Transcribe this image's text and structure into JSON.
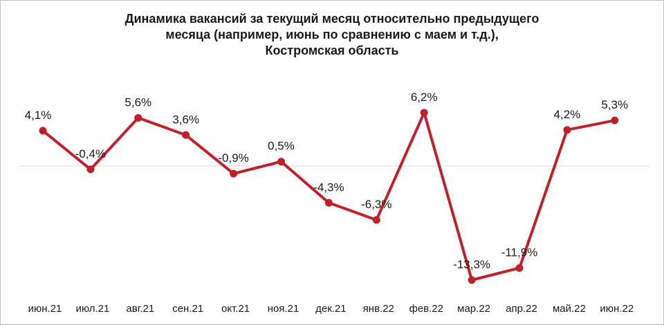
{
  "chart_data": {
    "type": "line",
    "title_lines": [
      "Динамика вакансий за текущий месяц относительно предыдущего",
      "месяца (например, июнь по сравнению с маем и т.д.),",
      "Костромская область"
    ],
    "xlabel": "",
    "ylabel": "",
    "categories": [
      "июн.21",
      "июл.21",
      "авг.21",
      "сен.21",
      "окт.21",
      "ноя.21",
      "дек.21",
      "янв.22",
      "фев.22",
      "мар.22",
      "апр.22",
      "май.22",
      "июн.22"
    ],
    "series": [
      {
        "values": [
          4.1,
          -0.4,
          5.6,
          3.6,
          -0.9,
          0.5,
          -4.3,
          -6.3,
          6.2,
          -13.3,
          -11.9,
          4.2,
          5.3
        ],
        "labels": [
          "4,1%",
          "-0,4%",
          "5,6%",
          "3,6%",
          "-0,9%",
          "0,5%",
          "-4,3%",
          "-6,3%",
          "6,2%",
          "-13,3%",
          "-11,9%",
          "4,2%",
          "5,3%"
        ],
        "color": "#c0202a"
      }
    ],
    "value_unit": "%",
    "zero_line": true,
    "grid": false,
    "legend": "none",
    "ylim": [
      -13.3,
      6.2
    ]
  }
}
